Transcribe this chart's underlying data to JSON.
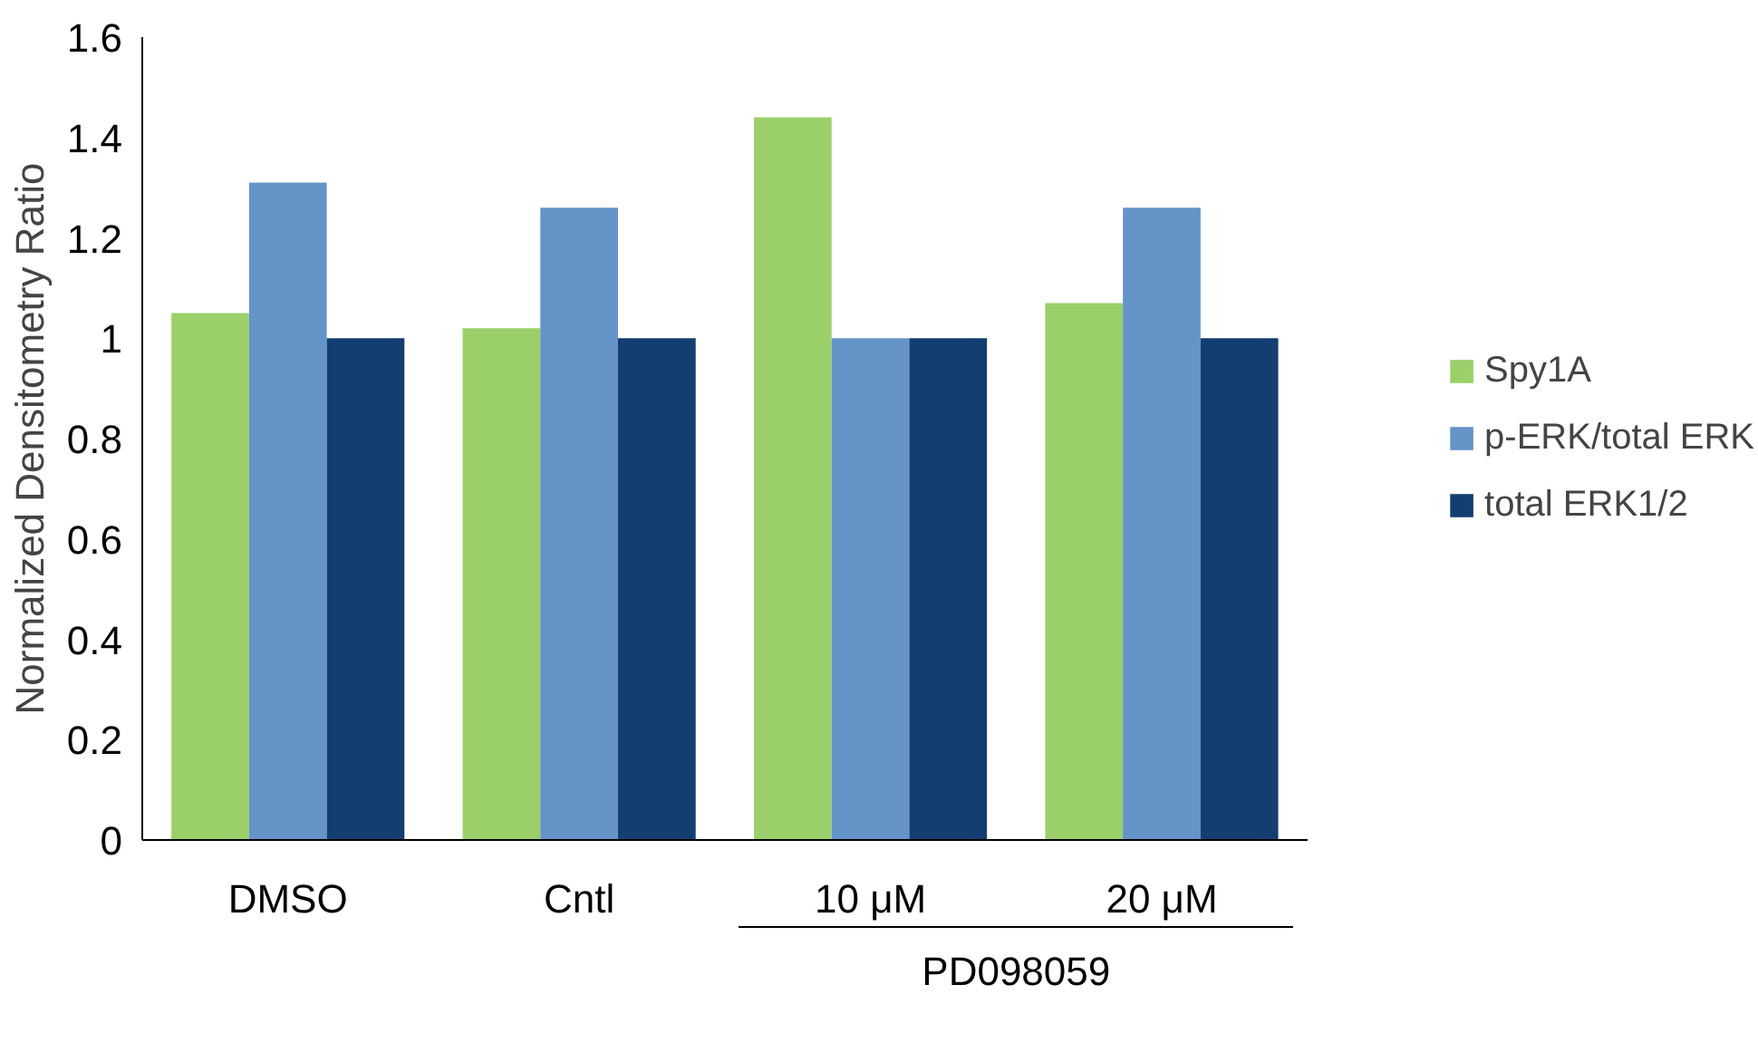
{
  "chart_data": {
    "type": "bar",
    "ylabel": "Normalized Densitometry Ratio",
    "categories": [
      "DMSO",
      "Cntl",
      "10 μM",
      "20 μM"
    ],
    "series": [
      {
        "name": "Spy1A",
        "color": "#9bcf6a",
        "values": [
          1.05,
          1.02,
          1.44,
          1.07
        ]
      },
      {
        "name": "p-ERK/total ERK",
        "color": "#6494c8",
        "values": [
          1.31,
          1.26,
          1.0,
          1.26
        ]
      },
      {
        "name": "total ERK1/2",
        "color": "#133e72",
        "values": [
          1.0,
          1.0,
          1.0,
          1.0
        ]
      }
    ],
    "ylim": [
      0,
      1.6
    ],
    "yticks": [
      0,
      0.2,
      0.4,
      0.6,
      0.8,
      1,
      1.2,
      1.4,
      1.6
    ],
    "grid": false,
    "legend": "right",
    "annotations": [
      "PD098059"
    ]
  }
}
